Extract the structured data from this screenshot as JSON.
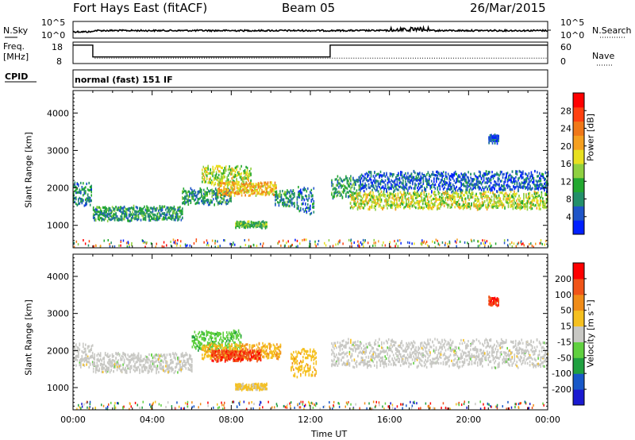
{
  "header": {
    "station": "Fort Hays East (fitACF)",
    "beam": "Beam 05",
    "date": "26/Mar/2015"
  },
  "top_panels": {
    "nsky_label": "N.Sky",
    "nsearch_label": "N.Search",
    "freq_label_1": "Freq.",
    "freq_label_2": "[MHz]",
    "nave_label": "Nave",
    "cpid_label": "CPID",
    "cpid_text": "normal (fast) 151 IF",
    "noise_ticks_left": [
      "10^5",
      "10^0"
    ],
    "noise_ticks_right": [
      "10^5",
      "10^0"
    ],
    "freq_ticks_left": [
      "18",
      "8"
    ],
    "nave_ticks_right": [
      "60",
      "0"
    ]
  },
  "colors": {
    "power": [
      "#0020ff",
      "#1f55c8",
      "#238f6a",
      "#23a830",
      "#8fd040",
      "#e8e020",
      "#f5a020",
      "#f07818",
      "#ff4010",
      "#ff0000"
    ],
    "velocity": [
      "#1a1ad0",
      "#1858c8",
      "#20a040",
      "#60d040",
      "#c8c8c4",
      "#f5c020",
      "#f08c18",
      "#f05418",
      "#ff0000"
    ]
  },
  "chart_data": [
    {
      "type": "heatmap",
      "panel": "power",
      "ylabel": "Slant Range [km]",
      "yticks": [
        "1000",
        "2000",
        "3000",
        "4000"
      ],
      "ylim": [
        400,
        4600
      ],
      "xlim": [
        0,
        24
      ],
      "colorbar_label": "Power [dB]",
      "colorbar_ticks": [
        "4",
        "8",
        "12",
        "16",
        "20",
        "24",
        "28"
      ],
      "colorbar_range": [
        0,
        32
      ],
      "regions": [
        {
          "t0": 0.0,
          "t1": 0.95,
          "r_center": 1900,
          "r_half": 320,
          "value": 8
        },
        {
          "t0": 1.0,
          "t1": 5.5,
          "r_center": 1350,
          "r_half": 180,
          "value": 9
        },
        {
          "t0": 5.5,
          "t1": 8.0,
          "r_center": 1800,
          "r_half": 200,
          "value": 9
        },
        {
          "t0": 6.5,
          "t1": 9.0,
          "r_center": 2350,
          "r_half": 250,
          "value": 15
        },
        {
          "t0": 7.3,
          "t1": 10.3,
          "r_center": 2000,
          "r_half": 170,
          "value": 20
        },
        {
          "t0": 8.2,
          "t1": 9.8,
          "r_center": 1050,
          "r_half": 80,
          "value": 12
        },
        {
          "t0": 10.2,
          "t1": 11.2,
          "r_center": 1750,
          "r_half": 200,
          "value": 9
        },
        {
          "t0": 11.3,
          "t1": 12.2,
          "r_center": 1700,
          "r_half": 350,
          "value": 7
        },
        {
          "t0": 13.05,
          "t1": 14.5,
          "r_center": 2050,
          "r_half": 280,
          "value": 9
        },
        {
          "t0": 14.0,
          "t1": 24.0,
          "r_center": 1700,
          "r_half": 220,
          "value": 16
        },
        {
          "t0": 14.5,
          "t1": 24.0,
          "r_center": 2200,
          "r_half": 250,
          "value": 5
        },
        {
          "t0": 21.0,
          "t1": 21.5,
          "r_center": 3350,
          "r_half": 120,
          "value": 4
        }
      ]
    },
    {
      "type": "heatmap",
      "panel": "velocity",
      "ylabel": "Slant Range [km]",
      "yticks": [
        "1000",
        "2000",
        "3000",
        "4000"
      ],
      "ylim": [
        400,
        4600
      ],
      "xlim": [
        0,
        24
      ],
      "colorbar_label": "Velocity [m s⁻¹]",
      "colorbar_ticks": [
        "-200",
        "-100",
        "-50",
        "-15",
        "15",
        "50",
        "100",
        "200"
      ],
      "colorbar_range": [
        -250,
        250
      ],
      "regions": [
        {
          "t0": 0.0,
          "t1": 1.0,
          "r_center": 1900,
          "r_half": 320,
          "value": 0
        },
        {
          "t0": 1.0,
          "t1": 6.0,
          "r_center": 1700,
          "r_half": 250,
          "value": 0
        },
        {
          "t0": 6.0,
          "t1": 8.5,
          "r_center": 2300,
          "r_half": 250,
          "value": -60
        },
        {
          "t0": 6.5,
          "t1": 10.5,
          "r_center": 2000,
          "r_half": 200,
          "value": 70
        },
        {
          "t0": 7.0,
          "t1": 9.5,
          "r_center": 1900,
          "r_half": 150,
          "value": 180
        },
        {
          "t0": 8.2,
          "t1": 9.8,
          "r_center": 1050,
          "r_half": 80,
          "value": 40
        },
        {
          "t0": 11.0,
          "t1": 12.3,
          "r_center": 1700,
          "r_half": 350,
          "value": 60
        },
        {
          "t0": 13.05,
          "t1": 24.0,
          "r_center": 1950,
          "r_half": 350,
          "value": 0
        },
        {
          "t0": 21.0,
          "t1": 21.5,
          "r_center": 3350,
          "r_half": 120,
          "value": 200
        }
      ]
    }
  ],
  "x_axis": {
    "label": "Time UT",
    "ticks": [
      "00:00",
      "04:00",
      "08:00",
      "12:00",
      "16:00",
      "20:00",
      "00:00"
    ]
  }
}
